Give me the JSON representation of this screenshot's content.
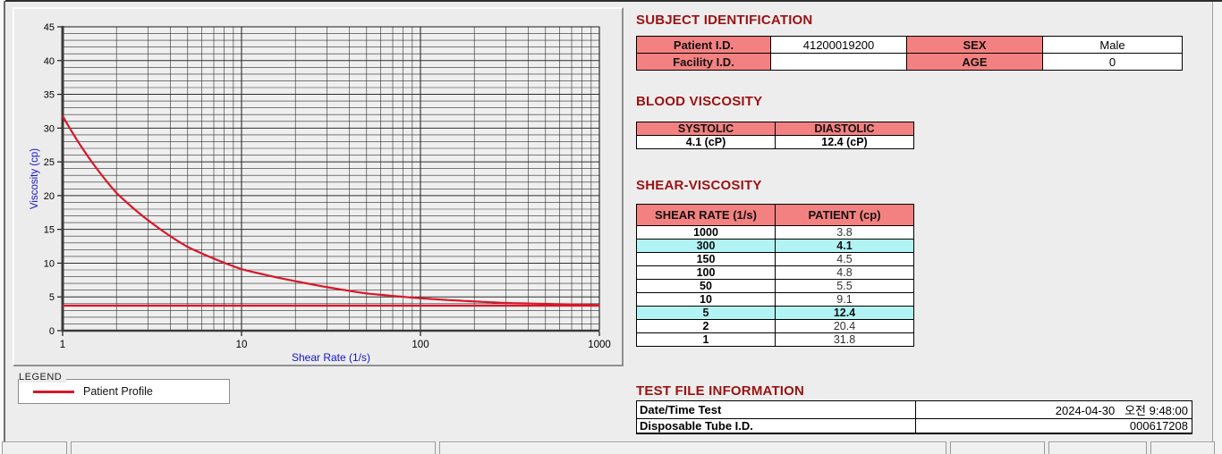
{
  "chart_data": {
    "type": "line",
    "title": "",
    "xlabel": "Shear Rate (1/s)",
    "ylabel": "Viscosity (cp)",
    "xscale": "log",
    "xlim": [
      1,
      1000
    ],
    "ylim": [
      0,
      45
    ],
    "ytick_step": 5,
    "yminor_step": 1,
    "xticks": [
      1,
      10,
      100,
      1000
    ],
    "grid": true,
    "legend_position": "below-left",
    "series": [
      {
        "name": "Patient Profile",
        "color": "#d7182a",
        "smooth": true,
        "points": [
          [
            1,
            31.8
          ],
          [
            2,
            20.4
          ],
          [
            5,
            12.4
          ],
          [
            10,
            9.1
          ],
          [
            50,
            5.5
          ],
          [
            100,
            4.8
          ],
          [
            150,
            4.5
          ],
          [
            300,
            4.1
          ],
          [
            1000,
            3.8
          ]
        ]
      },
      {
        "name": "baseline",
        "color": "#d7182a",
        "smooth": false,
        "points": [
          [
            1,
            3.7
          ],
          [
            1000,
            3.7
          ]
        ]
      }
    ]
  },
  "legend": {
    "title": "LEGEND",
    "entries": [
      {
        "label": "Patient Profile",
        "color": "#d7182a"
      }
    ]
  },
  "subject_identification": {
    "heading": "SUBJECT IDENTIFICATION",
    "rows": [
      {
        "label1": "Patient I.D.",
        "value1": "41200019200",
        "label2": "SEX",
        "value2": "Male"
      },
      {
        "label1": "Facility I.D.",
        "value1": "",
        "label2": "AGE",
        "value2": "0"
      }
    ]
  },
  "blood_viscosity": {
    "heading": "BLOOD VISCOSITY",
    "columns": [
      "SYSTOLIC",
      "DIASTOLIC"
    ],
    "values": [
      "4.1 (cP)",
      "12.4 (cP)"
    ]
  },
  "shear_viscosity": {
    "heading": "SHEAR-VISCOSITY",
    "columns": [
      "SHEAR RATE (1/s)",
      "PATIENT (cp)"
    ],
    "highlight_color": "#b2f4f4",
    "rows": [
      {
        "shear_rate": "1000",
        "patient": "3.8",
        "highlight": false
      },
      {
        "shear_rate": "300",
        "patient": "4.1",
        "highlight": true
      },
      {
        "shear_rate": "150",
        "patient": "4.5",
        "highlight": false
      },
      {
        "shear_rate": "100",
        "patient": "4.8",
        "highlight": false
      },
      {
        "shear_rate": "50",
        "patient": "5.5",
        "highlight": false
      },
      {
        "shear_rate": "10",
        "patient": "9.1",
        "highlight": false
      },
      {
        "shear_rate": "5",
        "patient": "12.4",
        "highlight": true
      },
      {
        "shear_rate": "2",
        "patient": "20.4",
        "highlight": false
      },
      {
        "shear_rate": "1",
        "patient": "31.8",
        "highlight": false
      }
    ]
  },
  "test_file_information": {
    "heading": "TEST FILE INFORMATION",
    "rows": [
      {
        "label": "Date/Time Test",
        "value": "2024-04-30   오전 9:48:00"
      },
      {
        "label": "Disposable Tube I.D.",
        "value": "000617208"
      }
    ]
  },
  "colors": {
    "heading": "#9a1212",
    "table_header_bg": "#f48181",
    "highlight_bg": "#b2f4f4",
    "series_red": "#d7182a",
    "axis_label_blue": "#1414c8"
  }
}
